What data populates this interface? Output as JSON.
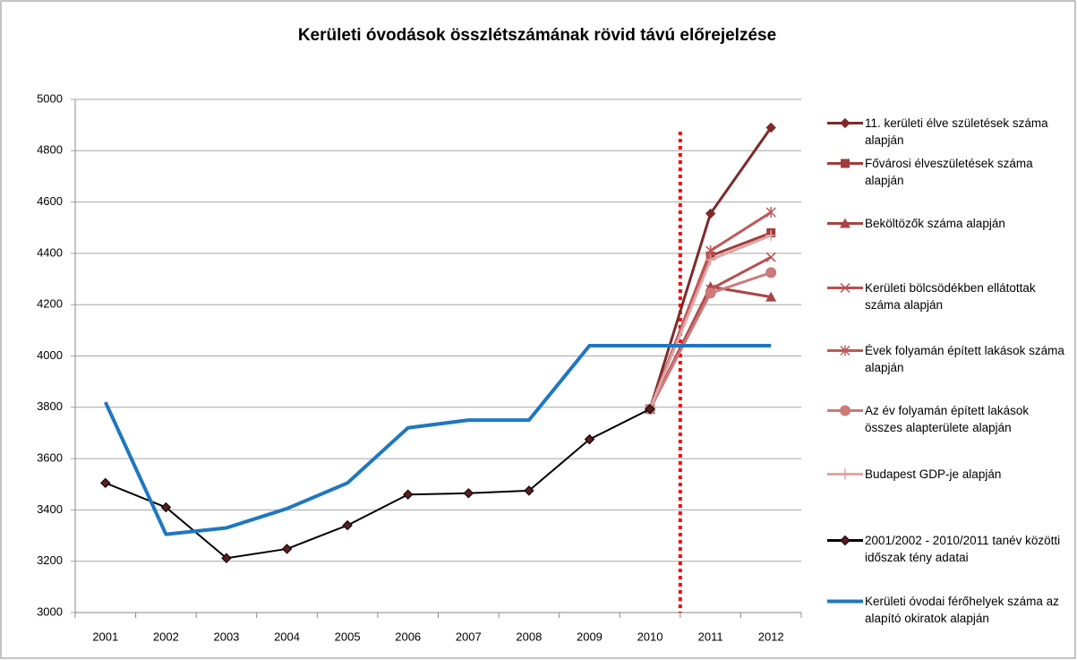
{
  "chart_data": {
    "type": "line",
    "title": "Kerületi óvodások összlétszámának rövid távú előrejelzése",
    "categories": [
      "2001",
      "2002",
      "2003",
      "2004",
      "2005",
      "2006",
      "2007",
      "2008",
      "2009",
      "2010",
      "2011",
      "2012"
    ],
    "ylim": [
      3000,
      5000
    ],
    "yticks": [
      3000,
      3200,
      3400,
      3600,
      3800,
      4000,
      4200,
      4400,
      4600,
      4800,
      5000
    ],
    "grid": true,
    "legend": "right",
    "series": [
      {
        "name": "11. kerületi élve születések száma alapján",
        "color": "#7f2a2a",
        "marker": "diamond",
        "values": [
          null,
          null,
          null,
          null,
          null,
          null,
          null,
          null,
          null,
          3793,
          4555,
          4890
        ]
      },
      {
        "name": "Fővárosi élveszületések száma alapján",
        "color": "#a03c3c",
        "marker": "square",
        "values": [
          null,
          null,
          null,
          null,
          null,
          null,
          null,
          null,
          null,
          3793,
          4390,
          4480
        ]
      },
      {
        "name": "Beköltözők száma alapján",
        "color": "#a84444",
        "marker": "triangle",
        "values": [
          null,
          null,
          null,
          null,
          null,
          null,
          null,
          null,
          null,
          3793,
          4270,
          4230
        ]
      },
      {
        "name": "Kerületi bölcsödékben ellátottak száma  alapján",
        "color": "#b85050",
        "marker": "x",
        "values": [
          null,
          null,
          null,
          null,
          null,
          null,
          null,
          null,
          null,
          3793,
          4260,
          4385
        ]
      },
      {
        "name": "Évek folyamán  épített lakások száma  alapján",
        "color": "#c05858",
        "marker": "star",
        "values": [
          null,
          null,
          null,
          null,
          null,
          null,
          null,
          null,
          null,
          3793,
          4410,
          4560
        ]
      },
      {
        "name": "Az év folyamán épített lakások összes alapterülete alapján",
        "color": "#cc7a7a",
        "marker": "circle",
        "values": [
          null,
          null,
          null,
          null,
          null,
          null,
          null,
          null,
          null,
          3793,
          4245,
          4325
        ]
      },
      {
        "name": "Budapest GDP-je  alapján",
        "color": "#e0a4a4",
        "marker": "plus",
        "values": [
          null,
          null,
          null,
          null,
          null,
          null,
          null,
          null,
          null,
          3793,
          4375,
          4470
        ]
      },
      {
        "name": "2001/2002 - 2010/2011 tanév közötti időszak tény adatai",
        "color": "#000000",
        "marker": "diamond",
        "values": [
          3505,
          3410,
          3212,
          3248,
          3340,
          3460,
          3465,
          3475,
          3675,
          3793,
          null,
          null
        ]
      },
      {
        "name": "Kerületi óvodai férőhelyek száma az alapító okiratok alapján",
        "color": "#1f77c0",
        "marker": "none",
        "values": [
          3820,
          3305,
          3330,
          3405,
          3505,
          3720,
          3750,
          3750,
          4040,
          4040,
          4040,
          4040
        ]
      }
    ]
  }
}
